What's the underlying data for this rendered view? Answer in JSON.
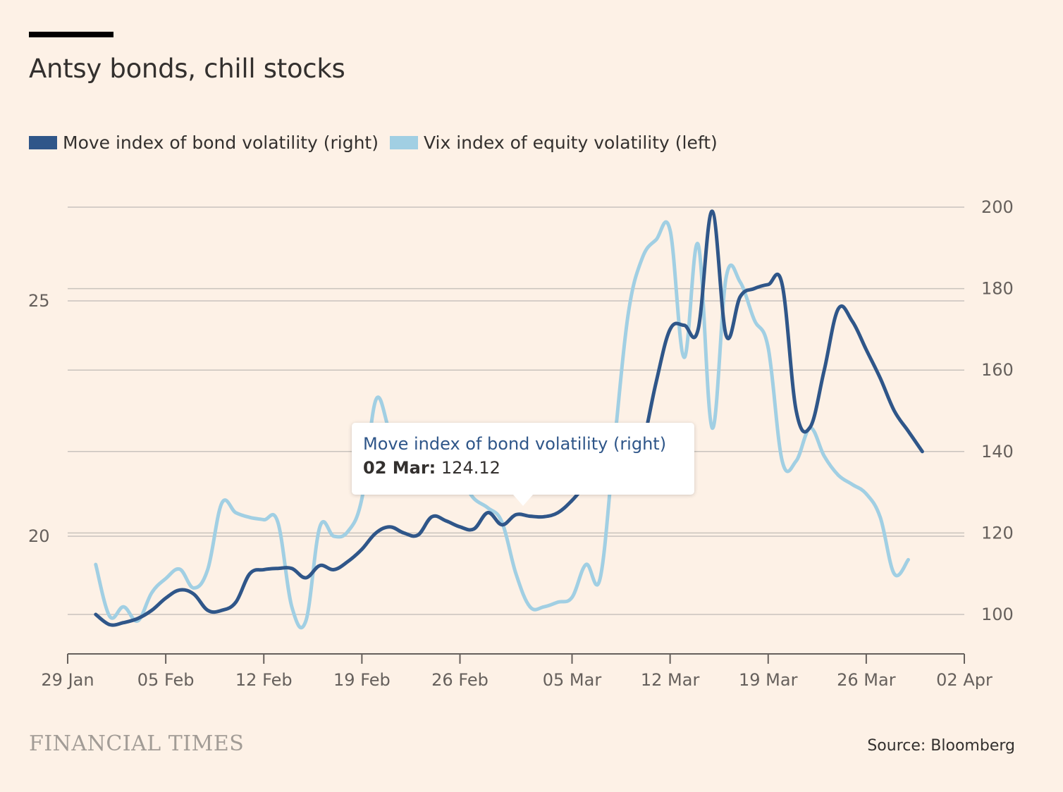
{
  "title": "Antsy bonds, chill stocks",
  "legend": {
    "move": "Move index of bond volatility (right)",
    "vix": "Vix index of equity volatility (left)"
  },
  "colors": {
    "move": "#2f5689",
    "vix": "#a1cfe3",
    "grid": "#c9c3bd",
    "axis": "#66605c",
    "background": "#fdf1e6"
  },
  "tooltip": {
    "series": "Move index of bond volatility (right)",
    "date": "02 Mar:",
    "value": "124.12"
  },
  "footer": {
    "logo": "FINANCIAL TIMES",
    "source": "Source: Bloomberg"
  },
  "chart_data": {
    "type": "line",
    "title": "Antsy bonds, chill stocks",
    "x_axis": {
      "ticks": [
        "29 Jan",
        "05 Feb",
        "12 Feb",
        "19 Feb",
        "26 Feb",
        "05 Mar",
        "12 Mar",
        "19 Mar",
        "26 Mar",
        "02 Apr"
      ],
      "range": [
        "29 Jan",
        "02 Apr"
      ]
    },
    "y_left": {
      "ticks": [
        20,
        25
      ],
      "range": [
        17.5,
        27.5
      ]
    },
    "y_right": {
      "ticks": [
        100,
        120,
        140,
        160,
        180,
        200
      ],
      "range": [
        90,
        200
      ]
    },
    "grid": true,
    "legend_position": "top-left",
    "series": [
      {
        "name": "Move index of bond volatility (right)",
        "axis": "right",
        "points": [
          [
            "31 Jan",
            100
          ],
          [
            "01 Feb",
            97.5
          ],
          [
            "02 Feb",
            98
          ],
          [
            "03 Feb",
            99
          ],
          [
            "04 Feb",
            101
          ],
          [
            "05 Feb",
            104
          ],
          [
            "06 Feb",
            106
          ],
          [
            "07 Feb",
            105
          ],
          [
            "08 Feb",
            101
          ],
          [
            "09 Feb",
            101
          ],
          [
            "10 Feb",
            103
          ],
          [
            "11 Feb",
            110
          ],
          [
            "12 Feb",
            111
          ],
          [
            "13 Feb",
            111.3
          ],
          [
            "14 Feb",
            111.3
          ],
          [
            "15 Feb",
            109
          ],
          [
            "16 Feb",
            112
          ],
          [
            "17 Feb",
            111
          ],
          [
            "18 Feb",
            113
          ],
          [
            "19 Feb",
            116
          ],
          [
            "20 Feb",
            120
          ],
          [
            "21 Feb",
            121.5
          ],
          [
            "22 Feb",
            120
          ],
          [
            "23 Feb",
            119.5
          ],
          [
            "24 Feb",
            124
          ],
          [
            "25 Feb",
            123
          ],
          [
            "26 Feb",
            121.5
          ],
          [
            "27 Feb",
            121
          ],
          [
            "28 Feb",
            125
          ],
          [
            "29 Feb",
            122
          ],
          [
            "01 Mar",
            124.5
          ],
          [
            "02 Mar",
            124.12
          ],
          [
            "03 Mar",
            124
          ],
          [
            "04 Mar",
            125
          ],
          [
            "05 Mar",
            128
          ],
          [
            "06 Mar",
            132
          ],
          [
            "07 Mar",
            136
          ],
          [
            "08 Mar",
            133
          ],
          [
            "09 Mar",
            132
          ],
          [
            "10 Mar",
            141
          ],
          [
            "11 Mar",
            157
          ],
          [
            "12 Mar",
            170
          ],
          [
            "13 Mar",
            171
          ],
          [
            "14 Mar",
            170
          ],
          [
            "15 Mar",
            199
          ],
          [
            "16 Mar",
            168.5
          ],
          [
            "17 Mar",
            178
          ],
          [
            "18 Mar",
            180
          ],
          [
            "19 Mar",
            181
          ],
          [
            "20 Mar",
            181
          ],
          [
            "21 Mar",
            150
          ],
          [
            "22 Mar",
            146
          ],
          [
            "23 Mar",
            160
          ],
          [
            "24 Mar",
            175
          ],
          [
            "25 Mar",
            172
          ],
          [
            "26 Mar",
            165
          ],
          [
            "27 Mar",
            158
          ],
          [
            "28 Mar",
            150
          ],
          [
            "29 Mar",
            145
          ],
          [
            "30 Mar",
            140
          ]
        ]
      },
      {
        "name": "Vix index of equity volatility (left)",
        "axis": "left",
        "points": [
          [
            "31 Jan",
            19.4
          ],
          [
            "01 Feb",
            18.3
          ],
          [
            "02 Feb",
            18.5
          ],
          [
            "03 Feb",
            18.2
          ],
          [
            "04 Feb",
            18.8
          ],
          [
            "05 Feb",
            19.1
          ],
          [
            "06 Feb",
            19.3
          ],
          [
            "07 Feb",
            18.9
          ],
          [
            "08 Feb",
            19.3
          ],
          [
            "09 Feb",
            20.7
          ],
          [
            "10 Feb",
            20.5
          ],
          [
            "11 Feb",
            20.4
          ],
          [
            "12 Feb",
            20.35
          ],
          [
            "13 Feb",
            20.3
          ],
          [
            "14 Feb",
            18.5
          ],
          [
            "15 Feb",
            18.2
          ],
          [
            "16 Feb",
            20.2
          ],
          [
            "17 Feb",
            20.0
          ],
          [
            "18 Feb",
            20.1
          ],
          [
            "19 Feb",
            20.8
          ],
          [
            "20 Feb",
            22.9
          ],
          [
            "21 Feb",
            22.2
          ],
          [
            "22 Feb",
            21.5
          ],
          [
            "23 Feb",
            21.4
          ],
          [
            "24 Feb",
            21.2
          ],
          [
            "25 Feb",
            21.2
          ],
          [
            "26 Feb",
            21.2
          ],
          [
            "27 Feb",
            20.8
          ],
          [
            "28 Feb",
            20.6
          ],
          [
            "29 Feb",
            20.3
          ],
          [
            "01 Mar",
            19.2
          ],
          [
            "02 Mar",
            18.5
          ],
          [
            "03 Mar",
            18.5
          ],
          [
            "04 Mar",
            18.6
          ],
          [
            "05 Mar",
            18.7
          ],
          [
            "06 Mar",
            19.4
          ],
          [
            "07 Mar",
            19.1
          ],
          [
            "08 Mar",
            21.9
          ],
          [
            "09 Mar",
            24.7
          ],
          [
            "10 Mar",
            25.9
          ],
          [
            "11 Mar",
            26.3
          ],
          [
            "12 Mar",
            26.5
          ],
          [
            "13 Mar",
            23.8
          ],
          [
            "14 Mar",
            26.2
          ],
          [
            "15 Mar",
            22.3
          ],
          [
            "16 Mar",
            25.5
          ],
          [
            "17 Mar",
            25.4
          ],
          [
            "18 Mar",
            24.6
          ],
          [
            "19 Mar",
            24.0
          ],
          [
            "20 Mar",
            21.6
          ],
          [
            "21 Mar",
            21.6
          ],
          [
            "22 Mar",
            22.3
          ],
          [
            "23 Mar",
            21.7
          ],
          [
            "24 Mar",
            21.3
          ],
          [
            "25 Mar",
            21.1
          ],
          [
            "26 Mar",
            20.9
          ],
          [
            "27 Mar",
            20.4
          ],
          [
            "28 Mar",
            19.2
          ],
          [
            "29 Mar",
            19.5
          ]
        ]
      }
    ]
  }
}
